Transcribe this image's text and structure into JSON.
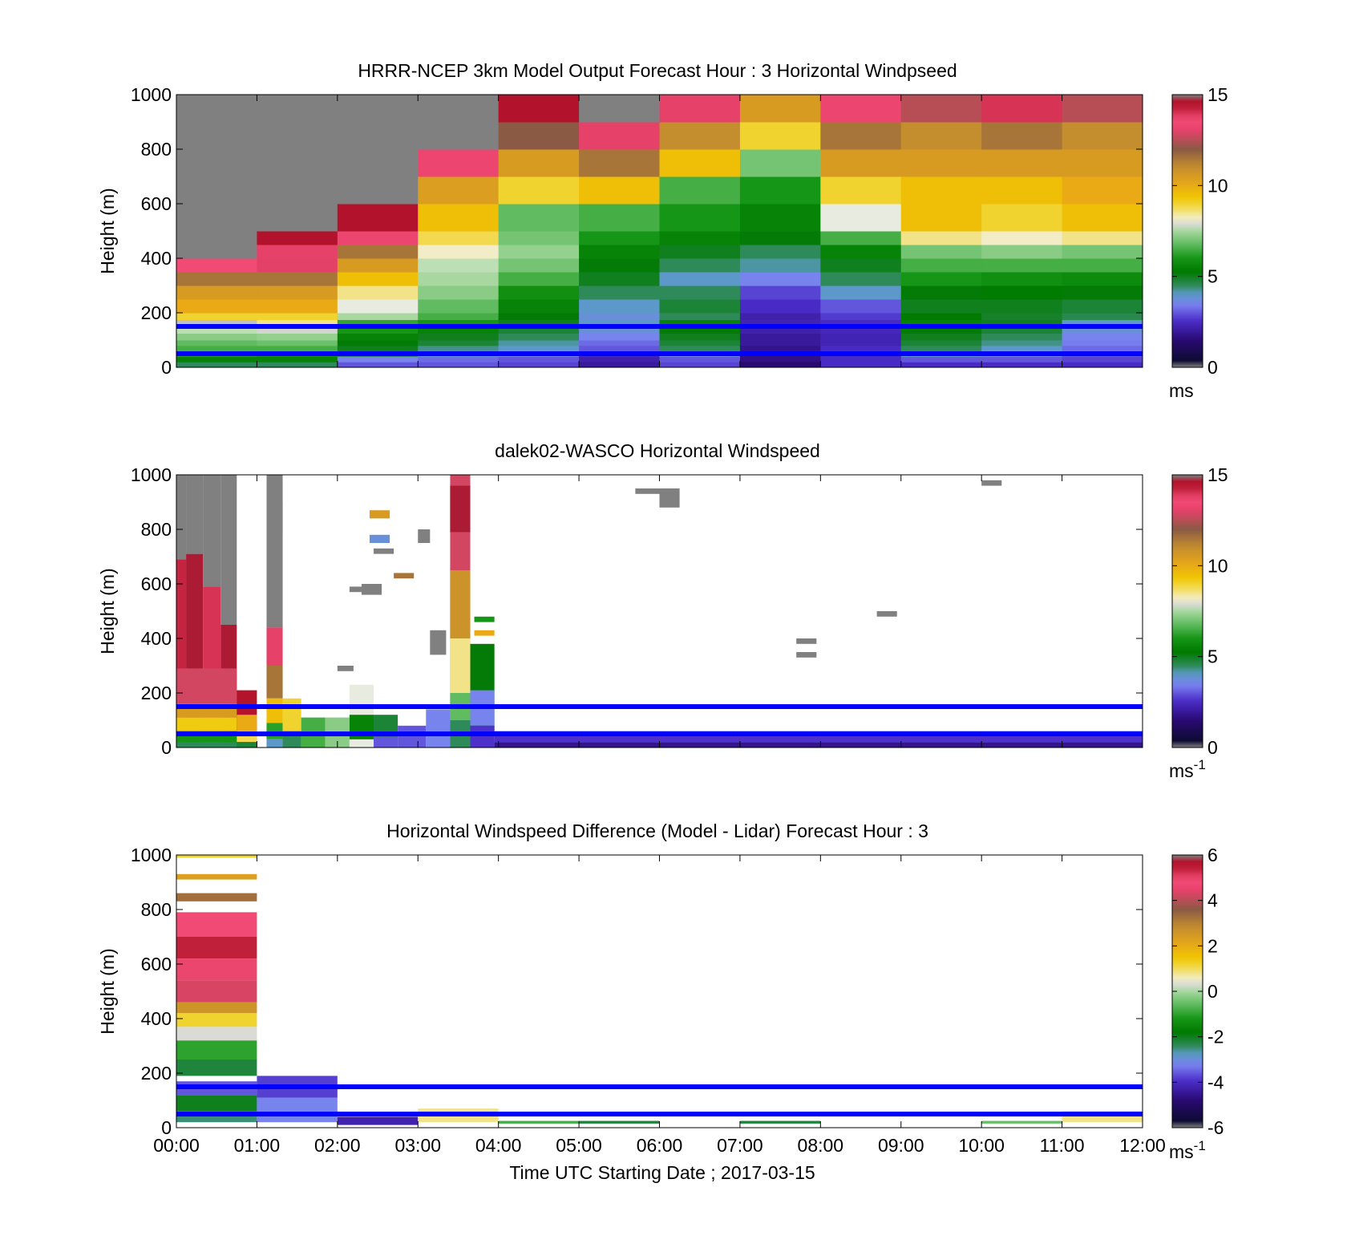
{
  "figure": {
    "xlabel": "Time UTC  Starting Date ; 2017-03-15",
    "x_ticks": [
      "00:00",
      "01:00",
      "02:00",
      "03:00",
      "04:00",
      "05:00",
      "06:00",
      "07:00",
      "08:00",
      "09:00",
      "10:00",
      "11:00",
      "12:00"
    ],
    "ylabel": "Height (m)",
    "y_ticks": [
      "0",
      "200",
      "400",
      "600",
      "800",
      "1000"
    ],
    "reference_line_color": "#0000ff",
    "reference_lines_m": [
      50,
      150
    ]
  },
  "chart_data": [
    {
      "type": "heatmap",
      "title": "HRRR-NCEP 3km Model Output   Forecast Hour : 3 Horizontal Windpseed",
      "xlim_hours": [
        0,
        12
      ],
      "ylim": [
        0,
        1000
      ],
      "colorbar": {
        "min": 0,
        "max": 15,
        "ticks": [
          "15",
          "10",
          "5",
          "0"
        ],
        "unit": "ms",
        "unit_sup": ""
      },
      "note": "columns = hourly model profiles; bounds in m, values in m/s",
      "bounds": [
        0,
        20,
        40,
        60,
        80,
        100,
        125,
        150,
        175,
        200,
        250,
        300,
        350,
        400,
        450,
        500,
        600,
        700,
        800,
        900,
        1000
      ],
      "columns": [
        [
          4.5,
          5.5,
          6.2,
          6.5,
          6.8,
          7.2,
          7.6,
          8.0,
          9.0,
          10.0,
          10.5,
          11.5,
          13.5,
          15.9,
          15.9,
          15.9,
          15.9,
          15.9,
          15.9,
          15.9
        ],
        [
          4.5,
          5.5,
          6.0,
          6.5,
          6.9,
          7.3,
          7.9,
          8.5,
          9.0,
          10.0,
          10.5,
          11.5,
          13.0,
          13.8,
          14.6,
          15.9,
          15.9,
          15.9,
          15.9,
          15.9
        ],
        [
          3.0,
          3.5,
          4.5,
          5.0,
          5.2,
          5.5,
          6.0,
          6.3,
          7.5,
          7.8,
          8.5,
          9.5,
          10.5,
          11.5,
          13.3,
          14.6,
          15.9,
          15.9,
          15.9,
          15.9
        ],
        [
          3.0,
          3.2,
          3.8,
          4.3,
          4.8,
          5.0,
          5.5,
          6.0,
          6.5,
          6.8,
          7.2,
          7.5,
          7.6,
          8.2,
          8.8,
          9.5,
          10.4,
          13.3,
          15.9,
          15.9
        ],
        [
          2.8,
          3.0,
          3.5,
          4.0,
          4.2,
          4.5,
          4.8,
          5.0,
          5.2,
          5.5,
          5.8,
          6.5,
          7.0,
          7.3,
          7.0,
          6.8,
          9.0,
          10.5,
          12.0,
          14.6
        ],
        [
          2.0,
          2.2,
          2.5,
          3.0,
          3.2,
          3.5,
          3.8,
          4.0,
          3.8,
          4.0,
          4.5,
          5.0,
          5.2,
          5.5,
          6.0,
          6.5,
          9.5,
          11.5,
          13.8,
          15.9
        ],
        [
          2.8,
          3.0,
          3.5,
          4.5,
          4.8,
          5.0,
          5.2,
          5.5,
          4.5,
          4.8,
          4.5,
          4.0,
          4.5,
          5.0,
          5.5,
          6.0,
          6.5,
          9.5,
          11.0,
          13.8
        ],
        [
          1.5,
          1.7,
          1.7,
          1.8,
          2.0,
          2.0,
          2.2,
          2.3,
          2.2,
          2.5,
          2.8,
          3.5,
          4.2,
          4.5,
          5.2,
          5.5,
          6.0,
          7.0,
          9.0,
          10.5
        ],
        [
          2.5,
          2.5,
          2.5,
          2.5,
          2.3,
          2.3,
          2.4,
          2.5,
          2.7,
          3.0,
          4.0,
          4.5,
          5.0,
          5.5,
          6.5,
          7.8,
          9.0,
          10.5,
          11.5,
          13.3
        ],
        [
          2.5,
          3.0,
          4.0,
          4.5,
          4.8,
          5.0,
          5.2,
          5.5,
          5.3,
          5.0,
          5.2,
          6.0,
          6.5,
          7.0,
          8.5,
          9.5,
          9.5,
          10.5,
          11.0,
          12.5
        ],
        [
          2.5,
          3.0,
          3.5,
          4.0,
          4.3,
          4.5,
          4.8,
          5.0,
          4.9,
          5.0,
          5.3,
          5.8,
          6.5,
          7.2,
          8.2,
          9.0,
          9.5,
          10.5,
          11.5,
          14.0
        ],
        [
          2.5,
          2.8,
          3.0,
          3.2,
          3.4,
          3.5,
          3.8,
          4.0,
          4.6,
          4.8,
          5.2,
          5.7,
          6.5,
          7.0,
          8.5,
          9.5,
          10.0,
          10.5,
          11.0,
          12.5
        ]
      ]
    },
    {
      "type": "heatmap",
      "title": "dalek02-WASCO  Horizontal Windspeed",
      "xlim_hours": [
        0,
        12
      ],
      "ylim": [
        0,
        1000
      ],
      "colorbar": {
        "min": 0,
        "max": 15,
        "ticks": [
          "15",
          "10",
          "5",
          "0"
        ],
        "unit": "ms",
        "unit_sup": "-1"
      },
      "note": "lidar gates: [t0_h, t1_h, z0_m, z1_m, speed_m/s]",
      "cells": [
        [
          0.0,
          0.12,
          0,
          690,
          14.2
        ],
        [
          0.12,
          0.33,
          0,
          710,
          14.8
        ],
        [
          0.33,
          0.55,
          0,
          590,
          14.0
        ],
        [
          0.55,
          0.75,
          0,
          450,
          14.8
        ],
        [
          0.0,
          0.12,
          690,
          1000,
          15.9
        ],
        [
          0.12,
          0.33,
          710,
          1000,
          15.9
        ],
        [
          0.33,
          0.55,
          590,
          1000,
          15.9
        ],
        [
          0.55,
          0.75,
          450,
          1000,
          15.9
        ],
        [
          0.0,
          0.75,
          160,
          290,
          12.8
        ],
        [
          0.0,
          0.75,
          110,
          160,
          10.5
        ],
        [
          0.0,
          0.75,
          60,
          110,
          9.2
        ],
        [
          0.0,
          0.75,
          20,
          60,
          6.0
        ],
        [
          0.0,
          0.75,
          0,
          20,
          4.5
        ],
        [
          0.75,
          1.0,
          0,
          210,
          14.5
        ],
        [
          0.75,
          1.0,
          60,
          120,
          10.0
        ],
        [
          0.75,
          1.0,
          20,
          60,
          8.8
        ],
        [
          0.75,
          1.0,
          0,
          20,
          4.8
        ],
        [
          1.12,
          1.32,
          440,
          1000,
          15.9
        ],
        [
          1.12,
          1.32,
          300,
          440,
          13.8
        ],
        [
          1.12,
          1.32,
          180,
          300,
          11.5
        ],
        [
          1.12,
          1.32,
          90,
          180,
          9.5
        ],
        [
          1.12,
          1.32,
          30,
          90,
          6.2
        ],
        [
          1.12,
          1.32,
          0,
          30,
          4.0
        ],
        [
          1.32,
          1.55,
          0,
          180,
          9.0
        ],
        [
          1.32,
          1.55,
          0,
          60,
          4.5
        ],
        [
          1.55,
          1.85,
          0,
          110,
          6.5
        ],
        [
          1.85,
          2.15,
          0,
          110,
          7.2
        ],
        [
          2.15,
          2.45,
          0,
          230,
          7.8
        ],
        [
          2.15,
          2.45,
          30,
          120,
          5.5
        ],
        [
          2.45,
          2.75,
          0,
          120,
          4.8
        ],
        [
          2.45,
          2.75,
          0,
          40,
          3.0
        ],
        [
          2.75,
          3.1,
          0,
          80,
          3.0
        ],
        [
          3.1,
          3.4,
          0,
          140,
          3.5
        ],
        [
          3.4,
          3.65,
          0,
          1000,
          12.8
        ],
        [
          3.4,
          3.65,
          400,
          650,
          10.8
        ],
        [
          3.4,
          3.65,
          200,
          400,
          8.5
        ],
        [
          3.4,
          3.65,
          100,
          200,
          6.8
        ],
        [
          3.4,
          3.65,
          0,
          100,
          4.5
        ],
        [
          3.4,
          3.65,
          790,
          960,
          14.8
        ],
        [
          3.65,
          3.95,
          0,
          380,
          5.2
        ],
        [
          3.65,
          3.95,
          80,
          210,
          3.5
        ],
        [
          3.65,
          3.95,
          0,
          80,
          2.6
        ],
        [
          3.95,
          12.0,
          20,
          60,
          2.6
        ],
        [
          3.95,
          12.0,
          0,
          20,
          1.8
        ],
        [
          6.0,
          6.25,
          880,
          950,
          15.9
        ],
        [
          5.7,
          6.0,
          930,
          950,
          15.9
        ],
        [
          1.2,
          1.32,
          780,
          900,
          15.9
        ],
        [
          3.0,
          3.15,
          750,
          800,
          15.9
        ],
        [
          2.45,
          2.7,
          710,
          730,
          15.9
        ],
        [
          2.15,
          2.3,
          570,
          590,
          15.9
        ],
        [
          2.3,
          2.55,
          560,
          600,
          15.9
        ],
        [
          2.0,
          2.2,
          280,
          300,
          15.9
        ],
        [
          3.15,
          3.35,
          340,
          430,
          15.9
        ],
        [
          7.7,
          7.95,
          330,
          350,
          15.9
        ],
        [
          7.7,
          7.95,
          380,
          400,
          15.9
        ],
        [
          8.7,
          8.95,
          480,
          500,
          15.9
        ],
        [
          10.0,
          10.25,
          960,
          980,
          15.9
        ],
        [
          2.4,
          2.65,
          840,
          870,
          10.5
        ],
        [
          2.4,
          2.65,
          750,
          780,
          3.8
        ],
        [
          2.7,
          2.95,
          620,
          640,
          11.5
        ],
        [
          3.7,
          3.95,
          410,
          430,
          10.0
        ],
        [
          3.7,
          3.95,
          460,
          480,
          6.0
        ]
      ]
    },
    {
      "type": "heatmap",
      "title": "Horizontal Windspeed Difference (Model - Lidar) Forecast Hour : 3",
      "xlim_hours": [
        0,
        12
      ],
      "ylim": [
        0,
        1000
      ],
      "colorbar": {
        "min": -6,
        "max": 6,
        "ticks": [
          "6",
          "4",
          "2",
          "0",
          "-2",
          "-4",
          "-6"
        ],
        "unit": "ms",
        "unit_sup": "-1"
      },
      "note": "difference gates: [t0_h, t1_h, z0_m, z1_m, diff_m/s]",
      "cells": [
        [
          0,
          1,
          20,
          60,
          -2.5
        ],
        [
          0,
          1,
          60,
          120,
          -2.0
        ],
        [
          0,
          1,
          120,
          170,
          -3.6
        ],
        [
          0,
          1,
          190,
          250,
          -2.2
        ],
        [
          0,
          1,
          250,
          320,
          -1.0
        ],
        [
          0,
          1,
          320,
          370,
          0.3
        ],
        [
          0,
          1,
          370,
          420,
          1.2
        ],
        [
          0,
          1,
          420,
          460,
          2.6
        ],
        [
          0,
          1,
          460,
          540,
          4.3
        ],
        [
          0,
          1,
          540,
          620,
          5.0
        ],
        [
          0,
          1,
          620,
          700,
          5.4
        ],
        [
          0,
          1,
          700,
          790,
          4.8
        ],
        [
          0,
          1,
          830,
          860,
          3.3
        ],
        [
          0,
          1,
          910,
          930,
          2.3
        ],
        [
          0,
          1,
          990,
          1000,
          1.2
        ],
        [
          1,
          2,
          20,
          110,
          -3.2
        ],
        [
          1,
          2,
          110,
          190,
          -3.8
        ],
        [
          2,
          3,
          10,
          40,
          -4.2
        ],
        [
          3,
          4,
          20,
          70,
          0.8
        ],
        [
          4,
          5,
          15,
          25,
          -0.8
        ],
        [
          5,
          6,
          15,
          25,
          -2.2
        ],
        [
          7,
          8,
          15,
          25,
          -2.2
        ],
        [
          10,
          11,
          15,
          25,
          -0.5
        ],
        [
          11,
          12,
          20,
          60,
          0.8
        ]
      ]
    }
  ]
}
